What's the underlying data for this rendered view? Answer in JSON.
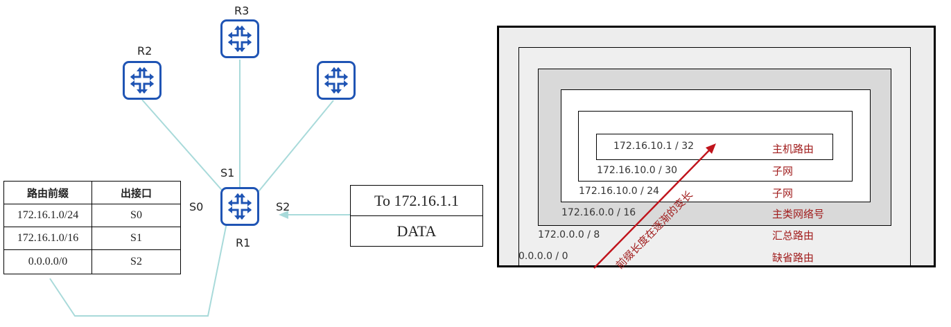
{
  "network": {
    "routers": [
      {
        "id": "r3",
        "label": "R3"
      },
      {
        "id": "r2",
        "label": "R2"
      },
      {
        "id": "r4",
        "label": ""
      },
      {
        "id": "r1",
        "label": "R1"
      }
    ],
    "interfaces": {
      "s0": "S0",
      "s1": "S1",
      "s2": "S2"
    },
    "link_color": "#a8dada",
    "router_color": "#1f54b4"
  },
  "routing_table": {
    "headers": [
      "路由前缀",
      "出接口"
    ],
    "rows": [
      {
        "prefix": "172.16.1.0/24",
        "iface": "S0"
      },
      {
        "prefix": "172.16.1.0/16",
        "iface": "S1"
      },
      {
        "prefix": "0.0.0.0/0",
        "iface": "S2"
      }
    ]
  },
  "packet": {
    "header": "To 172.16.1.1",
    "payload": "DATA"
  },
  "prefix_diagram": {
    "levels": [
      {
        "prefix": "172.16.10.1 / 32",
        "category": "主机路由"
      },
      {
        "prefix": "172.16.10.0 / 30",
        "category": "子网"
      },
      {
        "prefix": "172.16.10.0 / 24",
        "category": "子网"
      },
      {
        "prefix": "172.16.0.0 / 16",
        "category": "主类网络号"
      },
      {
        "prefix": "172.0.0.0 / 8",
        "category": "汇总路由"
      },
      {
        "prefix": "0.0.0.0 / 0",
        "category": "缺省路由"
      }
    ],
    "arrow_label": "前缀长度在逐渐的变长",
    "accent_color": "#a01c1c"
  }
}
